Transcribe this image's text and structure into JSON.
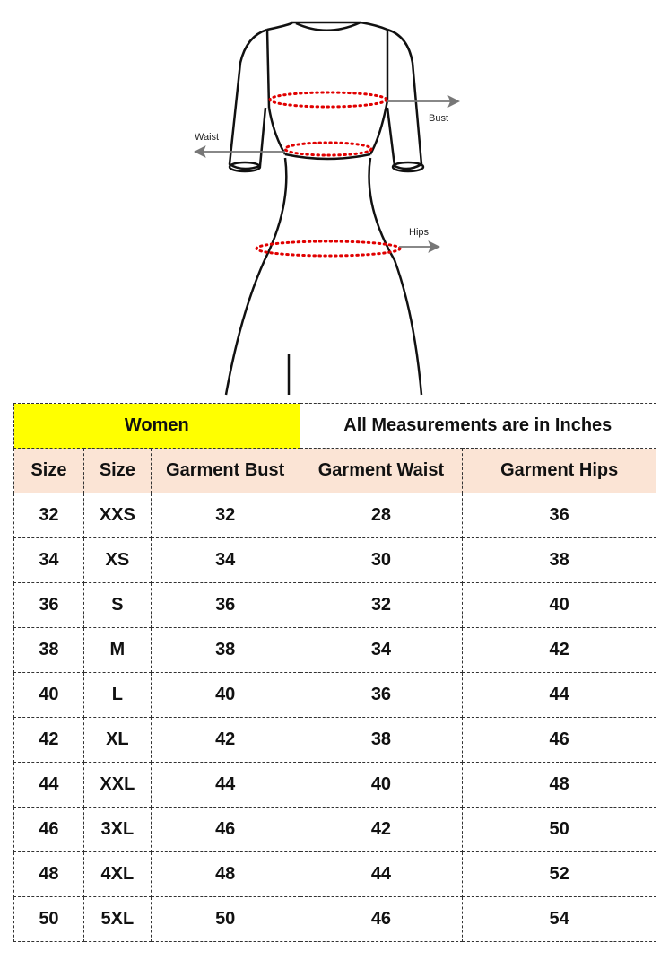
{
  "diagram": {
    "labels": {
      "bust": "Bust",
      "waist": "Waist",
      "hips": "Hips"
    },
    "colors": {
      "outline": "#111111",
      "measure_dots": "#e00000",
      "arrow": "#777777"
    }
  },
  "table": {
    "title": "Women",
    "note": "All Measurements are in Inches",
    "title_color": "#ffff00",
    "header_color": "#fbe4d5",
    "headers": [
      "Size",
      "Size",
      "Garment Bust",
      "Garment Waist",
      "Garment Hips"
    ],
    "rows": [
      [
        "32",
        "XXS",
        "32",
        "28",
        "36"
      ],
      [
        "34",
        "XS",
        "34",
        "30",
        "38"
      ],
      [
        "36",
        "S",
        "36",
        "32",
        "40"
      ],
      [
        "38",
        "M",
        "38",
        "34",
        "42"
      ],
      [
        "40",
        "L",
        "40",
        "36",
        "44"
      ],
      [
        "42",
        "XL",
        "42",
        "38",
        "46"
      ],
      [
        "44",
        "XXL",
        "44",
        "40",
        "48"
      ],
      [
        "46",
        "3XL",
        "46",
        "42",
        "50"
      ],
      [
        "48",
        "4XL",
        "48",
        "44",
        "52"
      ],
      [
        "50",
        "5XL",
        "50",
        "46",
        "54"
      ]
    ]
  }
}
